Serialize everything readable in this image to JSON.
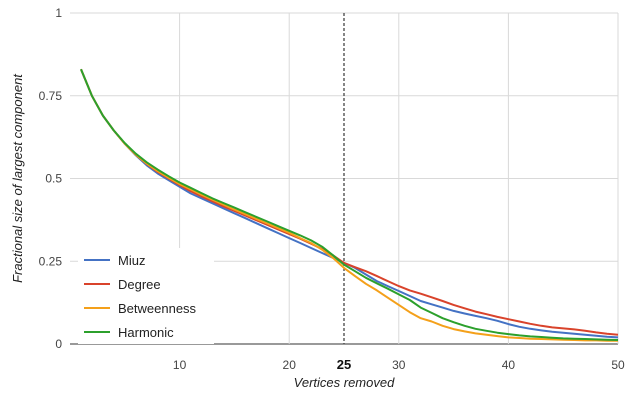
{
  "chart_data": {
    "type": "line",
    "title": "",
    "xlabel": "Vertices removed",
    "ylabel": "Fractional size of largest component",
    "xlim": [
      0,
      50
    ],
    "ylim": [
      0,
      1
    ],
    "grid": true,
    "legend_position": "bottom-left",
    "x_ticks": [
      {
        "value": 10,
        "label": "10"
      },
      {
        "value": 20,
        "label": "20"
      },
      {
        "value": 25,
        "label": "25",
        "emphasis": true
      },
      {
        "value": 30,
        "label": "30"
      },
      {
        "value": 40,
        "label": "40"
      },
      {
        "value": 50,
        "label": "50"
      }
    ],
    "y_ticks": [
      {
        "value": 0,
        "label": "0"
      },
      {
        "value": 0.25,
        "label": "0.25"
      },
      {
        "value": 0.5,
        "label": "0.5"
      },
      {
        "value": 0.75,
        "label": "0.75"
      },
      {
        "value": 1,
        "label": "1"
      }
    ],
    "reference_line": {
      "x": 25,
      "style": "dashed"
    },
    "x": [
      1,
      2,
      3,
      4,
      5,
      6,
      7,
      8,
      9,
      10,
      11,
      12,
      13,
      14,
      15,
      16,
      17,
      18,
      19,
      20,
      21,
      22,
      23,
      24,
      25,
      26,
      27,
      28,
      29,
      30,
      31,
      32,
      33,
      34,
      35,
      36,
      37,
      38,
      39,
      40,
      41,
      42,
      43,
      44,
      45,
      46,
      47,
      48,
      49,
      50
    ],
    "series": [
      {
        "name": "Miuz",
        "color": "#4472c4",
        "values": [
          0.83,
          0.75,
          0.69,
          0.645,
          0.605,
          0.57,
          0.54,
          0.515,
          0.495,
          0.475,
          0.455,
          0.44,
          0.425,
          0.41,
          0.395,
          0.38,
          0.365,
          0.35,
          0.335,
          0.32,
          0.305,
          0.29,
          0.275,
          0.26,
          0.245,
          0.23,
          0.21,
          0.19,
          0.175,
          0.16,
          0.145,
          0.13,
          0.12,
          0.11,
          0.1,
          0.092,
          0.085,
          0.078,
          0.07,
          0.06,
          0.052,
          0.046,
          0.041,
          0.037,
          0.034,
          0.031,
          0.028,
          0.025,
          0.022,
          0.02
        ]
      },
      {
        "name": "Degree",
        "color": "#d9432b",
        "values": [
          0.83,
          0.75,
          0.69,
          0.645,
          0.605,
          0.572,
          0.544,
          0.52,
          0.5,
          0.48,
          0.462,
          0.446,
          0.431,
          0.416,
          0.402,
          0.388,
          0.374,
          0.36,
          0.346,
          0.332,
          0.318,
          0.303,
          0.287,
          0.268,
          0.245,
          0.232,
          0.22,
          0.205,
          0.19,
          0.175,
          0.162,
          0.152,
          0.141,
          0.13,
          0.118,
          0.108,
          0.098,
          0.09,
          0.082,
          0.075,
          0.068,
          0.061,
          0.055,
          0.05,
          0.047,
          0.044,
          0.04,
          0.035,
          0.031,
          0.028
        ]
      },
      {
        "name": "Betweenness",
        "color": "#f4a01a",
        "values": [
          0.83,
          0.75,
          0.69,
          0.645,
          0.605,
          0.572,
          0.545,
          0.522,
          0.502,
          0.483,
          0.467,
          0.451,
          0.436,
          0.421,
          0.406,
          0.392,
          0.378,
          0.364,
          0.35,
          0.336,
          0.32,
          0.305,
          0.285,
          0.26,
          0.23,
          0.205,
          0.182,
          0.162,
          0.14,
          0.118,
          0.096,
          0.078,
          0.068,
          0.055,
          0.045,
          0.038,
          0.032,
          0.028,
          0.024,
          0.02,
          0.018,
          0.016,
          0.015,
          0.014,
          0.013,
          0.012,
          0.011,
          0.011,
          0.01,
          0.01
        ]
      },
      {
        "name": "Harmonic",
        "color": "#2ca02c",
        "values": [
          0.83,
          0.75,
          0.69,
          0.645,
          0.607,
          0.575,
          0.549,
          0.527,
          0.507,
          0.488,
          0.472,
          0.456,
          0.44,
          0.426,
          0.412,
          0.398,
          0.384,
          0.37,
          0.356,
          0.342,
          0.328,
          0.313,
          0.294,
          0.268,
          0.24,
          0.22,
          0.2,
          0.183,
          0.167,
          0.15,
          0.133,
          0.11,
          0.094,
          0.078,
          0.066,
          0.055,
          0.046,
          0.04,
          0.034,
          0.03,
          0.026,
          0.023,
          0.021,
          0.019,
          0.017,
          0.016,
          0.015,
          0.014,
          0.013,
          0.012
        ]
      }
    ]
  }
}
